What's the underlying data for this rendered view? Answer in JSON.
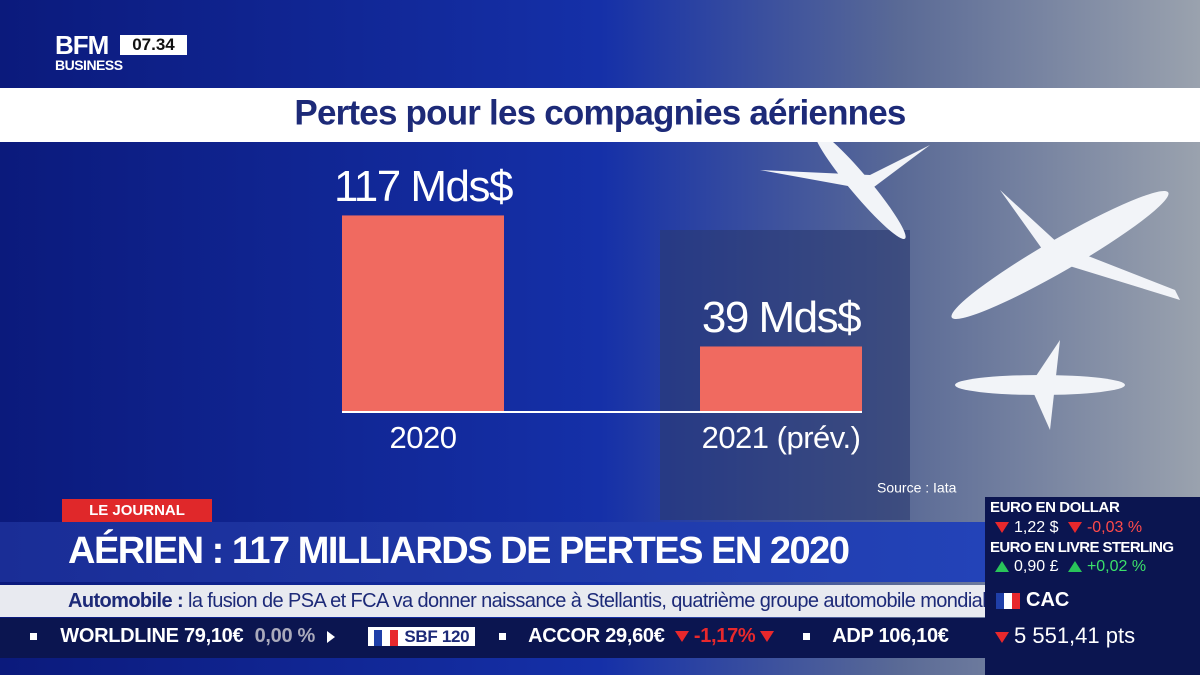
{
  "header": {
    "logo": "BFM",
    "logo_sub": "BUSINESS",
    "time": "07.34"
  },
  "chart_data": {
    "type": "bar",
    "title": "Pertes pour les compagnies aériennes",
    "categories": [
      "2020",
      "2021 (prév.)"
    ],
    "values": [
      117,
      39
    ],
    "value_labels": [
      "117 Mds$",
      "39 Mds$"
    ],
    "color": "#f06a60",
    "source": "Source : Iata"
  },
  "banner": {
    "tag": "LE JOURNAL",
    "headline": "AÉRIEN : 117 MILLIARDS DE PERTES EN 2020"
  },
  "news_ticker": {
    "topic": "Automobile :",
    "text": "la fusion de PSA et FCA va donner naissance à Stellantis, quatrième groupe automobile mondial."
  },
  "stock_ticker": [
    {
      "name": "WORLDLINE",
      "price": "79,10€",
      "change": "0,00 %"
    },
    {
      "index": "SBF 120"
    },
    {
      "name": "ACCOR",
      "price": "29,60€",
      "change": "-1,17%"
    },
    {
      "name": "ADP",
      "price": "106,10€"
    }
  ],
  "markets": [
    {
      "label": "EURO EN DOLLAR",
      "value": "1,22 $",
      "change": "-0,03 %"
    },
    {
      "label": "EURO EN LIVRE STERLING",
      "value": "0,90 £",
      "change": "+0,02 %"
    },
    {
      "label": "CAC",
      "value": "5 551,41 pts"
    }
  ]
}
